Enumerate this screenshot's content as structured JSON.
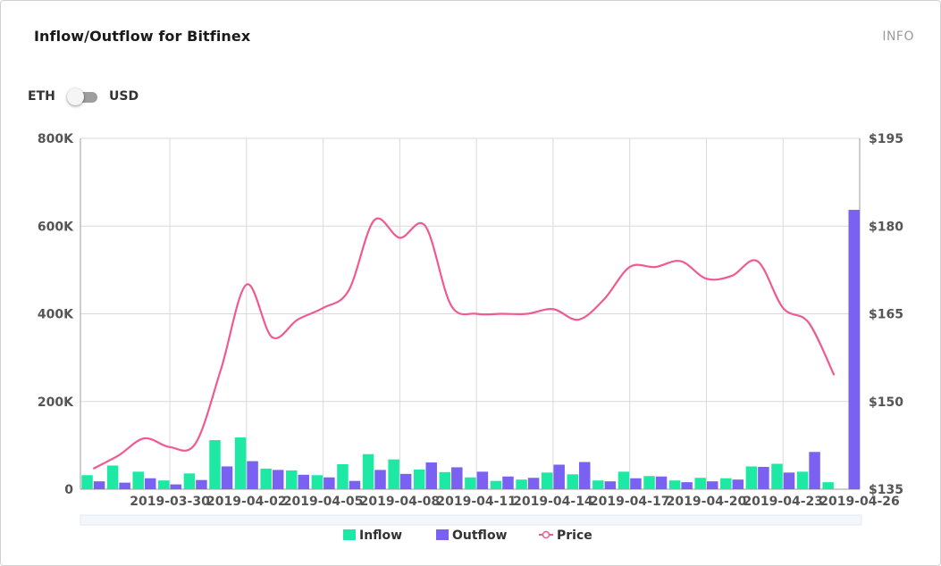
{
  "header": {
    "title": "Inflow/Outflow for Bitfinex",
    "info_label": "INFO"
  },
  "unit_toggle": {
    "left_label": "ETH",
    "right_label": "USD",
    "selected": "ETH"
  },
  "colors": {
    "inflow": "#1de9a4",
    "outflow": "#7b61f2",
    "price": "#ef5a93",
    "grid": "#d9d9d9"
  },
  "legend": {
    "inflow": "Inflow",
    "outflow": "Outflow",
    "price": "Price"
  },
  "chart_data": {
    "type": "bar",
    "title": "Inflow/Outflow for Bitfinex",
    "xlabel": "",
    "ylabel": "",
    "ylim": [
      0,
      800000
    ],
    "y2lim": [
      135,
      195
    ],
    "y_ticks": [
      "0",
      "200K",
      "400K",
      "600K",
      "800K"
    ],
    "y2_ticks": [
      "$135",
      "$150",
      "$165",
      "$180",
      "$195"
    ],
    "x_tick_labels": [
      "2019-03-30",
      "2019-04-02",
      "2019-04-05",
      "2019-04-08",
      "2019-04-11",
      "2019-04-14",
      "2019-04-17",
      "2019-04-20",
      "2019-04-23",
      "2019-04-26"
    ],
    "grid": true,
    "legend_position": "bottom",
    "categories": [
      "2019-03-27",
      "2019-03-28",
      "2019-03-29",
      "2019-03-30",
      "2019-03-31",
      "2019-04-01",
      "2019-04-02",
      "2019-04-03",
      "2019-04-04",
      "2019-04-05",
      "2019-04-06",
      "2019-04-07",
      "2019-04-08",
      "2019-04-09",
      "2019-04-10",
      "2019-04-11",
      "2019-04-12",
      "2019-04-13",
      "2019-04-14",
      "2019-04-15",
      "2019-04-16",
      "2019-04-17",
      "2019-04-18",
      "2019-04-19",
      "2019-04-20",
      "2019-04-21",
      "2019-04-22",
      "2019-04-23",
      "2019-04-24",
      "2019-04-25",
      "2019-04-26"
    ],
    "series": [
      {
        "name": "Inflow",
        "type": "bar",
        "axis": "left",
        "values": [
          32000,
          54000,
          40000,
          20000,
          36000,
          112000,
          118000,
          47000,
          43000,
          32000,
          57000,
          80000,
          68000,
          45000,
          39000,
          27000,
          19000,
          22000,
          38000,
          34000,
          20000,
          40000,
          30000,
          20000,
          26000,
          25000,
          52000,
          58000,
          40000,
          16000,
          null
        ]
      },
      {
        "name": "Outflow",
        "type": "bar",
        "axis": "left",
        "values": [
          18000,
          15000,
          25000,
          11000,
          21000,
          52000,
          64000,
          44000,
          33000,
          27000,
          19000,
          44000,
          35000,
          61000,
          50000,
          40000,
          29000,
          26000,
          56000,
          62000,
          18000,
          25000,
          29000,
          16000,
          18000,
          22000,
          51000,
          38000,
          85000,
          null,
          637000
        ]
      },
      {
        "name": "Price",
        "type": "line",
        "axis": "right",
        "values": [
          138.5,
          140.8,
          143.7,
          142.2,
          142.8,
          155.5,
          170.0,
          161.0,
          164.0,
          166.0,
          169.0,
          181.0,
          178.0,
          180.0,
          166.5,
          165.0,
          165.0,
          165.0,
          165.8,
          164.0,
          167.5,
          173.0,
          173.0,
          174.0,
          171.0,
          171.5,
          174.0,
          166.0,
          163.5,
          154.5,
          null
        ]
      }
    ]
  }
}
